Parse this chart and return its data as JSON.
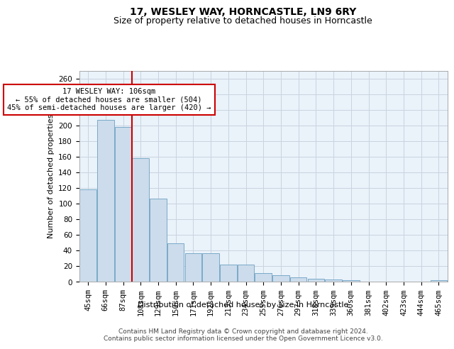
{
  "title": "17, WESLEY WAY, HORNCASTLE, LN9 6RY",
  "subtitle": "Size of property relative to detached houses in Horncastle",
  "xlabel": "Distribution of detached houses by size in Horncastle",
  "ylabel": "Number of detached properties",
  "bar_color": "#ccdcec",
  "bar_edge_color": "#7aaac8",
  "categories": [
    "45sqm",
    "66sqm",
    "87sqm",
    "108sqm",
    "129sqm",
    "150sqm",
    "171sqm",
    "192sqm",
    "213sqm",
    "234sqm",
    "255sqm",
    "276sqm",
    "297sqm",
    "318sqm",
    "339sqm",
    "360sqm",
    "381sqm",
    "402sqm",
    "423sqm",
    "444sqm",
    "465sqm"
  ],
  "values": [
    118,
    207,
    198,
    158,
    106,
    49,
    36,
    36,
    22,
    22,
    11,
    8,
    5,
    4,
    3,
    2,
    0,
    0,
    0,
    0,
    2
  ],
  "vline_after_index": 2,
  "vline_color": "#cc0000",
  "annotation_line1": "17 WESLEY WAY: 106sqm",
  "annotation_line2": "← 55% of detached houses are smaller (504)",
  "annotation_line3": "45% of semi-detached houses are larger (420) →",
  "annotation_box_color": "#ffffff",
  "annotation_box_edge_color": "#cc0000",
  "ylim": [
    0,
    270
  ],
  "yticks": [
    0,
    20,
    40,
    60,
    80,
    100,
    120,
    140,
    160,
    180,
    200,
    220,
    240,
    260
  ],
  "grid_color": "#c8d4e0",
  "bg_color": "#eaf2fa",
  "footer_text": "Contains HM Land Registry data © Crown copyright and database right 2024.\nContains public sector information licensed under the Open Government Licence v3.0.",
  "title_fontsize": 10,
  "subtitle_fontsize": 9,
  "ylabel_fontsize": 8,
  "xlabel_fontsize": 8,
  "tick_fontsize": 7.5,
  "annotation_fontsize": 7.5,
  "footer_fontsize": 6.5
}
